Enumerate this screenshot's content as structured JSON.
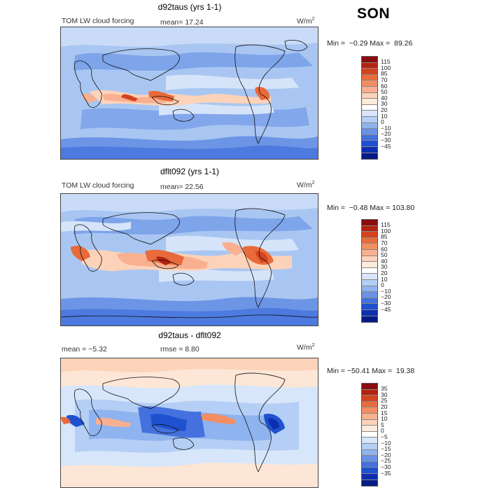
{
  "season": "SON",
  "units_base": "W/m",
  "units_exp": "2",
  "panels": [
    {
      "title": "d92taus (yrs 1-1)",
      "left_label": "TOM LW cloud forcing",
      "stat_label": "mean=  17.24",
      "minmax": "Min =  −0.29 Max =  89.26",
      "colorbar": {
        "colors": [
          "#8a0d0d",
          "#b3230f",
          "#d4431f",
          "#e96a3a",
          "#f38e62",
          "#f9b090",
          "#fcd3b9",
          "#fdebdc",
          "#ffffff",
          "#d7e6fa",
          "#b5cef5",
          "#8fb3ee",
          "#6992e6",
          "#4471dd",
          "#1f50cf",
          "#0d2fb0",
          "#061b85"
        ],
        "ticks": [
          "115",
          "100",
          "85",
          "70",
          "60",
          "50",
          "40",
          "30",
          "20",
          "10",
          "0",
          "−10",
          "−20",
          "−30",
          "−45"
        ]
      }
    },
    {
      "title": "dflt092 (yrs 1-1)",
      "left_label": "TOM LW cloud forcing",
      "stat_label": "mean=  22.56",
      "minmax": "Min =  −0.48 Max = 103.80",
      "colorbar": {
        "colors": [
          "#8a0d0d",
          "#b3230f",
          "#d4431f",
          "#e96a3a",
          "#f38e62",
          "#f9b090",
          "#fcd3b9",
          "#fdebdc",
          "#ffffff",
          "#d7e6fa",
          "#b5cef5",
          "#8fb3ee",
          "#6992e6",
          "#4471dd",
          "#1f50cf",
          "#0d2fb0",
          "#061b85"
        ],
        "ticks": [
          "115",
          "100",
          "85",
          "70",
          "60",
          "50",
          "40",
          "30",
          "20",
          "10",
          "0",
          "−10",
          "−20",
          "−30",
          "−45"
        ]
      }
    },
    {
      "title": "d92taus - dflt092",
      "left_label": "mean =   −5.32",
      "stat_label": "rmse =   8.80",
      "minmax": "Min = −50.41 Max =  19.38",
      "colorbar": {
        "colors": [
          "#8a0d0d",
          "#b3230f",
          "#d4431f",
          "#e96a3a",
          "#f38e62",
          "#f9b090",
          "#fcd3b9",
          "#fdebdc",
          "#ffffff",
          "#d7e6fa",
          "#b5cef5",
          "#8fb3ee",
          "#6992e6",
          "#4471dd",
          "#1f50cf",
          "#0d2fb0",
          "#061b85"
        ],
        "ticks": [
          "35",
          "30",
          "25",
          "20",
          "15",
          "10",
          "5",
          "0",
          "−5",
          "−10",
          "−15",
          "−20",
          "−25",
          "−30",
          "−35"
        ]
      }
    }
  ]
}
